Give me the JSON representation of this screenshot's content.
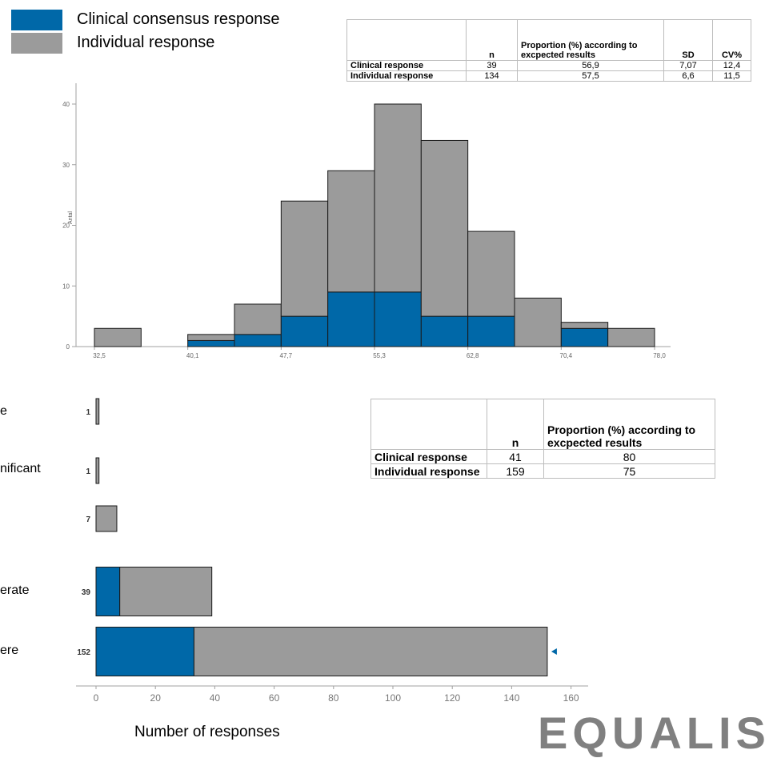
{
  "legend": {
    "items": [
      {
        "label": "Clinical consensus response",
        "color": "#0068a8"
      },
      {
        "label": "Individual response",
        "color": "#9b9b9b"
      }
    ]
  },
  "table1": {
    "headers": [
      "",
      "n",
      "Proportion (%) according to excpected results",
      "SD",
      "CV%"
    ],
    "rows": [
      {
        "label": "Clinical response",
        "n": "39",
        "proportion": "56,9",
        "sd": "7,07",
        "cv": "12,4"
      },
      {
        "label": "Individual response",
        "n": "134",
        "proportion": "57,5",
        "sd": "6,6",
        "cv": "11,5"
      }
    ]
  },
  "table2": {
    "headers": [
      "",
      "n",
      "Proportion (%) according to excpected results"
    ],
    "rows": [
      {
        "label": "Clinical response",
        "n": "41",
        "proportion": "80"
      },
      {
        "label": "Individual response",
        "n": "159",
        "proportion": "75"
      }
    ]
  },
  "chart_data": [
    {
      "type": "bar",
      "subtype": "stacked-histogram",
      "ylabel": "Antal",
      "xticks": [
        "32,5",
        "40,1",
        "47,7",
        "55,3",
        "62,8",
        "70,4",
        "78,0"
      ],
      "ylim": [
        0,
        40
      ],
      "yticks": [
        0,
        10,
        20,
        30,
        40
      ],
      "bin_start": 32.5,
      "bin_width": 3.79,
      "series": [
        {
          "name": "Clinical consensus response",
          "values": [
            0,
            0,
            1,
            2,
            5,
            9,
            9,
            5,
            5,
            0,
            3,
            0
          ],
          "color": "#0068a8"
        },
        {
          "name": "Individual response",
          "values": [
            3,
            0,
            1,
            5,
            19,
            20,
            31,
            29,
            14,
            8,
            1,
            3
          ],
          "color": "#9b9b9b"
        }
      ],
      "totals": [
        3,
        0,
        2,
        7,
        24,
        29,
        40,
        34,
        19,
        8,
        4,
        3
      ]
    },
    {
      "type": "bar",
      "orientation": "horizontal",
      "xlabel": "Number of responses",
      "xlim": [
        0,
        160
      ],
      "xticks": [
        0,
        20,
        40,
        60,
        80,
        100,
        120,
        140,
        160
      ],
      "categories": [
        "e",
        "nificant",
        "",
        "erate",
        "ere"
      ],
      "totals": [
        1,
        1,
        7,
        39,
        152
      ],
      "series": [
        {
          "name": "Clinical consensus response",
          "values": [
            0,
            0,
            0,
            8,
            33
          ],
          "color": "#0068a8"
        },
        {
          "name": "Individual response",
          "values": [
            1,
            1,
            7,
            31,
            119
          ],
          "color": "#9b9b9b"
        }
      ],
      "marker_category": "ere"
    }
  ],
  "axis_title": "Number of responses",
  "logo_text": "EQUALIS"
}
